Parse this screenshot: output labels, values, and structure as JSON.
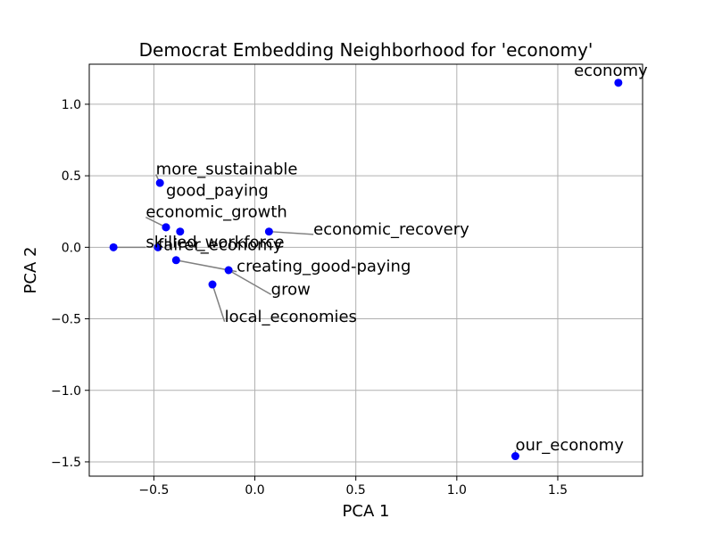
{
  "chart_data": {
    "type": "scatter",
    "title": "Democrat Embedding Neighborhood for 'economy'",
    "xlabel": "PCA 1",
    "ylabel": "PCA 2",
    "xlim": [
      -0.82,
      1.92
    ],
    "ylim": [
      -1.6,
      1.28
    ],
    "xticks": [
      -0.5,
      0.0,
      0.5,
      1.0,
      1.5
    ],
    "yticks": [
      -1.5,
      -1.0,
      -0.5,
      0.0,
      0.5,
      1.0
    ],
    "xtick_labels": [
      "−0.5",
      "0.0",
      "0.5",
      "1.0",
      "1.5"
    ],
    "ytick_labels": [
      "−1.5",
      "−1.0",
      "−0.5",
      "0.0",
      "0.5",
      "1.0"
    ],
    "grid": true,
    "marker_color": "#0000ff",
    "connector_color": "#808080",
    "points": [
      {
        "label": "economy",
        "x": 1.8,
        "y": 1.15,
        "label_x": 1.58,
        "label_y": 1.2,
        "connector": false
      },
      {
        "label": "more_sustainable",
        "x": -0.47,
        "y": 0.45,
        "label_x": -0.49,
        "label_y": 0.51,
        "connector": true
      },
      {
        "label": "good_paying",
        "x": -0.44,
        "y": 0.14,
        "label_x": -0.44,
        "label_y": 0.36,
        "connector": false
      },
      {
        "label": "economic_growth",
        "x": -0.44,
        "y": 0.14,
        "label_x": -0.54,
        "label_y": 0.21,
        "connector": true
      },
      {
        "label": "economic_recovery",
        "x": 0.07,
        "y": 0.11,
        "label_x": 0.29,
        "label_y": 0.09,
        "connector": true
      },
      {
        "label": "skilled_workforce",
        "x": -0.7,
        "y": 0.0,
        "label_x": -0.54,
        "label_y": 0.0,
        "connector": true
      },
      {
        "label": "fairer_economy",
        "x": -0.48,
        "y": 0.0,
        "label_x": -0.48,
        "label_y": -0.02,
        "connector": true
      },
      {
        "label": "creating_good-paying",
        "x": -0.39,
        "y": -0.09,
        "label_x": -0.09,
        "label_y": -0.17,
        "connector": true
      },
      {
        "label": "grow",
        "x": -0.13,
        "y": -0.16,
        "label_x": 0.08,
        "label_y": -0.33,
        "connector": true
      },
      {
        "label": "local_economies",
        "x": -0.21,
        "y": -0.26,
        "label_x": -0.15,
        "label_y": -0.52,
        "connector": true
      },
      {
        "label": "our_economy",
        "x": 1.29,
        "y": -1.46,
        "label_x": 1.29,
        "label_y": -1.42,
        "connector": true
      }
    ],
    "extra_points": [
      {
        "x": -0.37,
        "y": 0.11
      }
    ]
  }
}
